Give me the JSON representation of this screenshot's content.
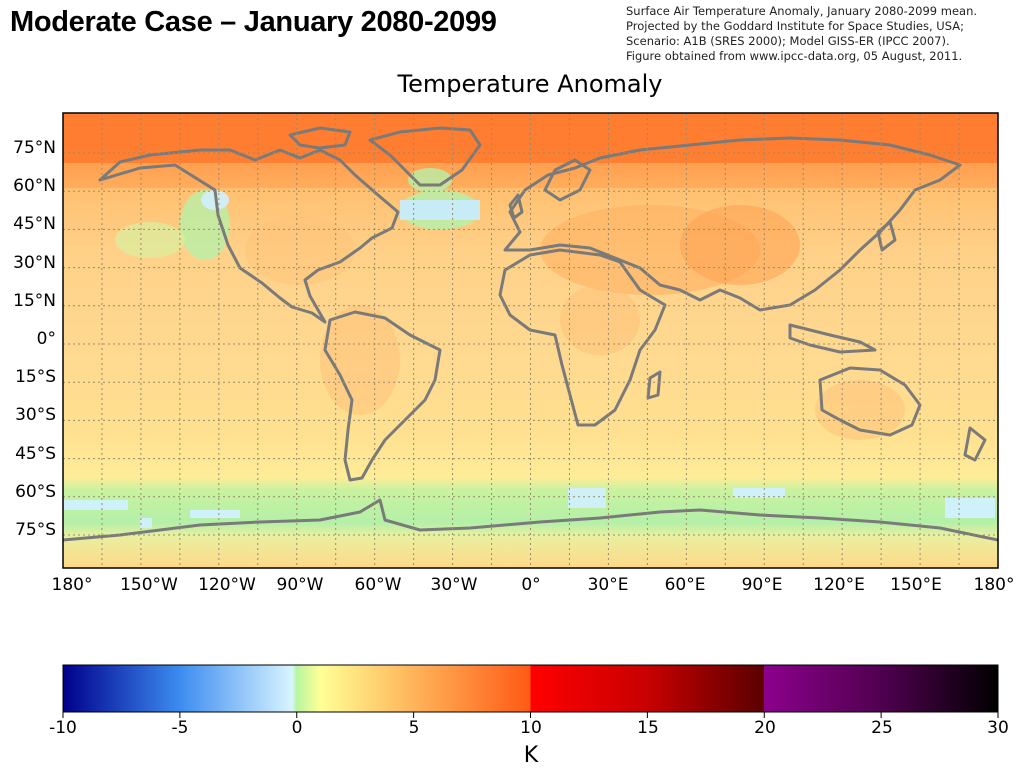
{
  "slide": {
    "title": "Moderate Case – January 2080-2099"
  },
  "caption": {
    "lines": [
      "Surface Air Temperature Anomaly, January 2080-2099 mean.",
      "Projected by the Goddard Institute for Space Studies, USA;",
      "Scenario: A1B (SRES 2000); Model GISS-ER (IPCC 2007).",
      "Figure obtained from www.ipcc-data.org, 05 August, 2011."
    ]
  },
  "map": {
    "title": "Temperature Anomaly",
    "projection": "equirectangular",
    "lat_labels": [
      "75°N",
      "60°N",
      "45°N",
      "30°N",
      "15°N",
      "0°",
      "15°S",
      "30°S",
      "45°S",
      "60°S",
      "75°S"
    ],
    "lon_labels": [
      "180°",
      "150°W",
      "120°W",
      "90°W",
      "60°W",
      "30°W",
      "0°",
      "30°E",
      "60°E",
      "90°E",
      "120°E",
      "150°E",
      "180°"
    ],
    "gridlines": "dotted every 15° latitude and 15° longitude",
    "colors": {
      "coastline": "#7a7a7a",
      "gridline": "#9a8a6a",
      "frame": "#000000"
    }
  },
  "colorbar": {
    "ticks": [
      "-10",
      "-5",
      "0",
      "5",
      "10",
      "15",
      "20",
      "25",
      "30"
    ],
    "unit": "K",
    "range": [
      -10,
      30
    ],
    "stops": [
      {
        "value": -10,
        "color": "#00008c"
      },
      {
        "value": -5,
        "color": "#3c8cf0"
      },
      {
        "value": -0.2,
        "color": "#d8f4ff"
      },
      {
        "value": 0,
        "color": "#b8f5a0"
      },
      {
        "value": 1,
        "color": "#ffff96"
      },
      {
        "value": 5,
        "color": "#ffb45a"
      },
      {
        "value": 9.99,
        "color": "#ff5a14"
      },
      {
        "value": 10,
        "color": "#ff0000"
      },
      {
        "value": 15,
        "color": "#c80000"
      },
      {
        "value": 19.99,
        "color": "#5a0000"
      },
      {
        "value": 20,
        "color": "#8c008c"
      },
      {
        "value": 25,
        "color": "#500050"
      },
      {
        "value": 30,
        "color": "#000000"
      }
    ]
  }
}
